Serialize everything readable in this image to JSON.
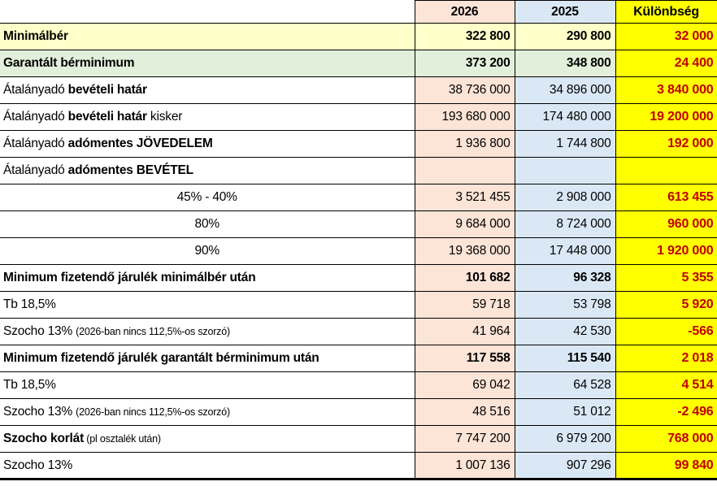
{
  "app": {
    "kind": "spreadsheet-comparison-table",
    "language": "hu"
  },
  "colors": {
    "fill_2026": "#FCE4D6",
    "fill_2025": "#DAE8F6",
    "fill_diff": "#FFFF00",
    "row_minimalber_fill": "#FFFFC9",
    "row_garantalt_fill": "#E2EFDA",
    "diff_text": "#C00000",
    "border": "#000000"
  },
  "header": {
    "label": "",
    "y2026": "2026",
    "y2025": "2025",
    "diff": "Különbség"
  },
  "rows": [
    {
      "label_parts": [
        {
          "text": "Minimálbér",
          "bold": true
        }
      ],
      "fill": "minimalber",
      "bold_values": true,
      "v2026": "322 800",
      "v2025": "290 800",
      "diff": "32 000"
    },
    {
      "label_parts": [
        {
          "text": "Garantált bérminimum",
          "bold": true
        }
      ],
      "fill": "garantalt",
      "bold_values": true,
      "v2026": "373 200",
      "v2025": "348 800",
      "diff": "24 400"
    },
    {
      "label_parts": [
        {
          "text": "Átalányadó "
        },
        {
          "text": "bevételi határ",
          "bold": true
        }
      ],
      "v2026": "38 736 000",
      "v2025": "34 896 000",
      "diff": "3 840 000"
    },
    {
      "label_parts": [
        {
          "text": "Átalányadó "
        },
        {
          "text": "bevételi határ",
          "bold": true
        },
        {
          "text": " kisker"
        }
      ],
      "v2026": "193 680 000",
      "v2025": "174 480 000",
      "diff": "19 200 000"
    },
    {
      "label_parts": [
        {
          "text": "Átalányadó "
        },
        {
          "text": "adómentes JÖVEDELEM",
          "bold": true
        }
      ],
      "v2026": "1 936 800",
      "v2025": "1 744 800",
      "diff": "192 000"
    },
    {
      "label_parts": [
        {
          "text": "Átalányadó "
        },
        {
          "text": "adómentes BEVÉTEL",
          "bold": true
        }
      ],
      "v2026": "",
      "v2025": "",
      "diff": ""
    },
    {
      "label_parts": [
        {
          "text": "45% - 40%"
        }
      ],
      "align": "center",
      "v2026": "3 521 455",
      "v2025": "2 908 000",
      "diff": "613 455"
    },
    {
      "label_parts": [
        {
          "text": "80%"
        }
      ],
      "align": "center",
      "v2026": "9 684 000",
      "v2025": "8 724 000",
      "diff": "960 000"
    },
    {
      "label_parts": [
        {
          "text": "90%"
        }
      ],
      "align": "center",
      "v2026": "19 368 000",
      "v2025": "17 448 000",
      "diff": "1 920 000"
    },
    {
      "label_parts": [
        {
          "text": "Minimum fizetendő járulék minimálbér után",
          "bold": true
        }
      ],
      "bold_values": true,
      "v2026": "101 682",
      "v2025": "96 328",
      "diff": "5 355"
    },
    {
      "label_parts": [
        {
          "text": "Tb 18,5%"
        }
      ],
      "v2026": "59 718",
      "v2025": "53 798",
      "diff": "5 920"
    },
    {
      "label_parts": [
        {
          "text": "Szocho 13% "
        },
        {
          "text": "(2026-ban nincs 112,5%-os szorzó)",
          "small": true
        }
      ],
      "v2026": "41 964",
      "v2025": "42 530",
      "diff": "-566"
    },
    {
      "label_parts": [
        {
          "text": "Minimum fizetendő járulék garantált bérminimum után",
          "bold": true
        }
      ],
      "bold_values": true,
      "v2026": "117 558",
      "v2025": "115 540",
      "diff": "2 018"
    },
    {
      "label_parts": [
        {
          "text": "Tb 18,5%"
        }
      ],
      "v2026": "69 042",
      "v2025": "64 528",
      "diff": "4 514"
    },
    {
      "label_parts": [
        {
          "text": "Szocho 13% "
        },
        {
          "text": "(2026-ban nincs 112,5%-os szorzó)",
          "small": true
        }
      ],
      "v2026": "48 516",
      "v2025": "51 012",
      "diff": "-2 496"
    },
    {
      "label_parts": [
        {
          "text": "Szocho korlát",
          "bold": true
        },
        {
          "text": " (pl osztalék után)",
          "small": true
        }
      ],
      "v2026": "7 747 200",
      "v2025": "6 979 200",
      "diff": "768 000"
    },
    {
      "label_parts": [
        {
          "text": "Szocho 13%"
        }
      ],
      "v2026": "1 007 136",
      "v2025": "907 296",
      "diff": "99 840"
    }
  ]
}
